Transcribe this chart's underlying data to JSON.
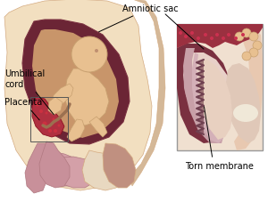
{
  "bg_color": "#FFFFFF",
  "body_skin": "#F2DFC0",
  "body_skin_dark": "#E8C8A0",
  "body_skin_edge": "#D4AA80",
  "uterus_dark": "#6B2535",
  "uterus_wall": "#7A3040",
  "amniotic_inner": "#C8956A",
  "baby_skin": "#E8C090",
  "baby_edge": "#C8A070",
  "placenta_red": "#B03040",
  "placenta_bright": "#CC3040",
  "tissue_pink": "#C8909A",
  "tissue_med": "#B07880",
  "tissue_dark": "#906070",
  "vagina_color": "#B87888",
  "rectum_color": "#C09080",
  "lower_organs": "#D4A0A8",
  "bladder_color": "#E8D8C0",
  "spine_color": "#D4B898",
  "cord_color": "#9B7050",
  "inset_border": "#999999",
  "inset_bg": "#F0E0D0",
  "inset_skin": "#E8C8B0",
  "inset_dark": "#7A3040",
  "inset_pink1": "#C8A0A8",
  "inset_pink2": "#D4B0B8",
  "inset_light": "#E8D0C8",
  "torn_color": "#704050",
  "text_color": "#000000",
  "label_amniotic": "Amniotic sac",
  "label_umbilical": "Umbilical\ncord",
  "label_placenta": "Placenta",
  "label_torn": "Torn membrane"
}
